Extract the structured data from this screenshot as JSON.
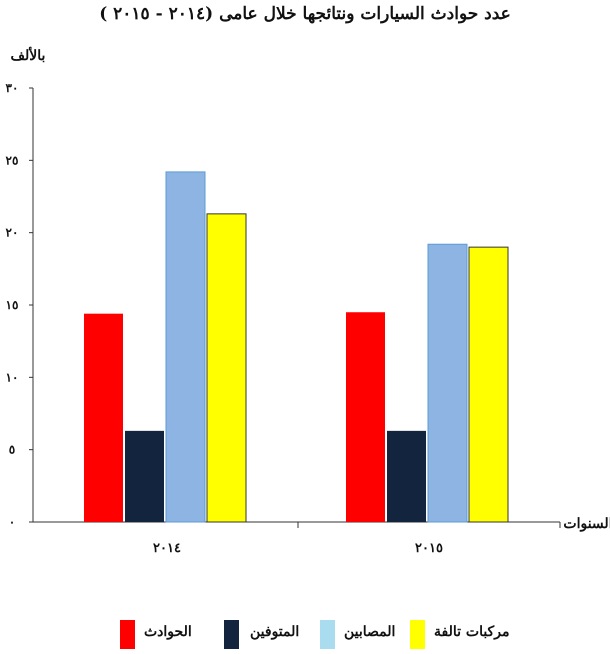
{
  "chart_data": {
    "type": "bar",
    "title": "عدد حوادث السيارات ونتائجها خلال عامى (٢٠١٤ - ٢٠١٥ )",
    "ylabel": "بالألف",
    "xlabel": "السنوات",
    "categories": [
      "٢٠١٤",
      "٢٠١٥"
    ],
    "ylim": [
      0,
      30
    ],
    "yticks": [
      0,
      5,
      10,
      15,
      20,
      25,
      30
    ],
    "ytick_labels": [
      "٠",
      "٥",
      "١٠",
      "١٥",
      "٢٠",
      "٢٥",
      "٣٠"
    ],
    "grid": false,
    "legend_position": "bottom",
    "series": [
      {
        "name": "الحوادث",
        "color": "#ff0000",
        "values": [
          14.4,
          14.5
        ]
      },
      {
        "name": "المتوفين",
        "color": "#13243f",
        "values": [
          6.3,
          6.3
        ]
      },
      {
        "name": "المصابين",
        "color": "#8eb4e3",
        "values": [
          24.2,
          19.2
        ]
      },
      {
        "name": "مركبات تالفة",
        "color": "#ffff00",
        "values": [
          21.3,
          19.0
        ]
      }
    ]
  },
  "legend_swatch_colors": [
    "#ff0000",
    "#13243f",
    "#a8dcee",
    "#ffff00"
  ]
}
